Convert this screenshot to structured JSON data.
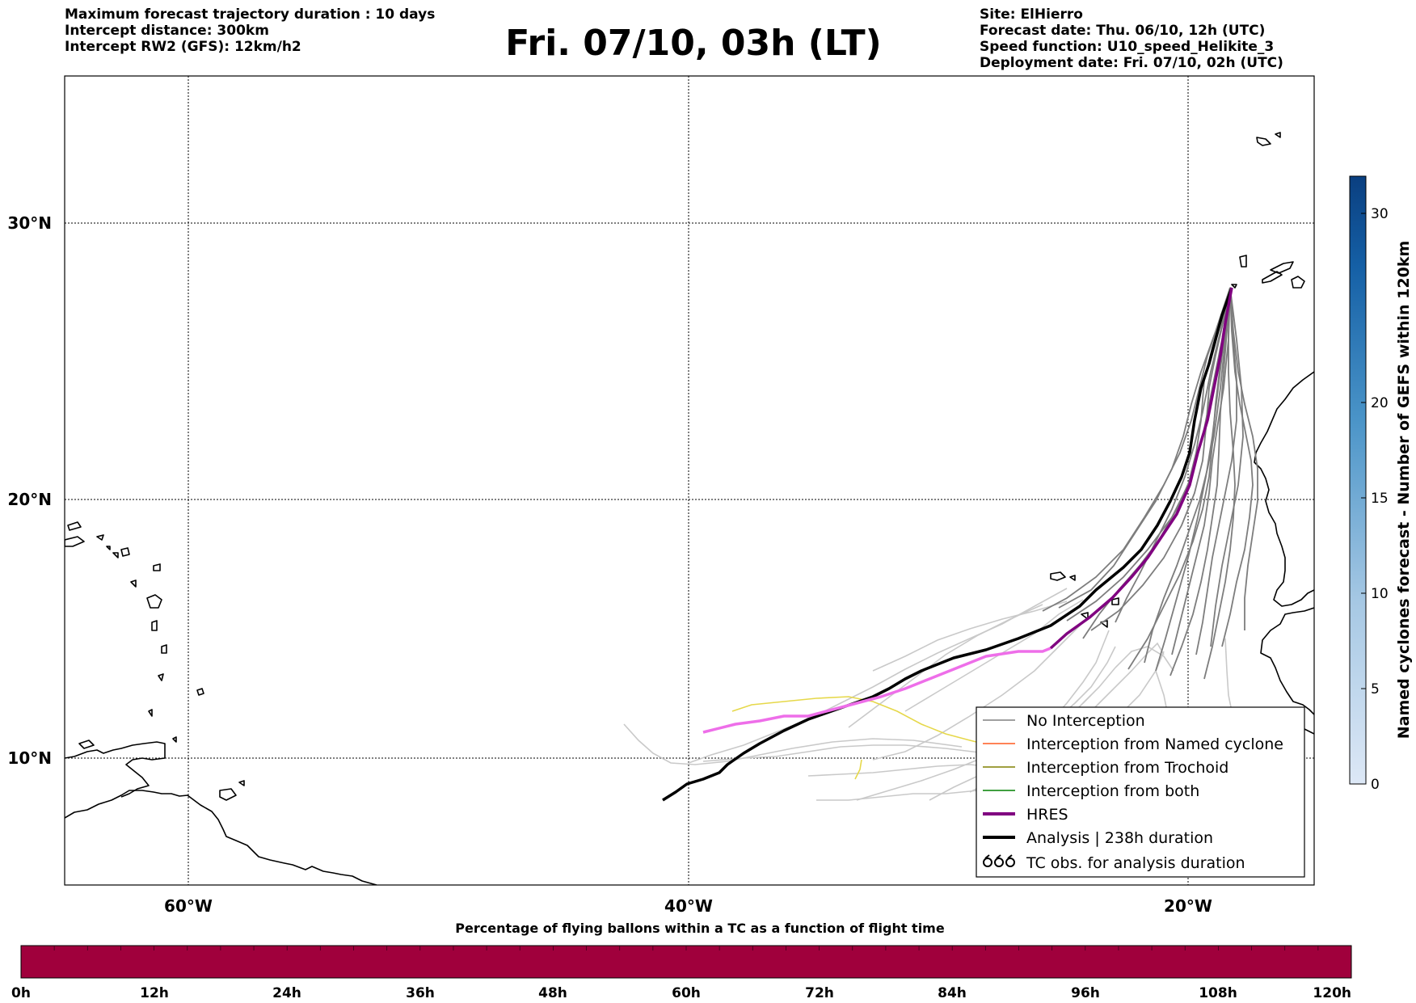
{
  "header": {
    "left_lines": [
      "Maximum forecast trajectory duration : 10 days",
      "Intercept distance: 300km",
      "Intercept RW2 (GFS):  12km/h2"
    ],
    "title": "Fri. 07/10, 03h (LT)",
    "right_lines": [
      "Site: ElHierro",
      "Forecast date: Thu. 06/10, 12h (UTC)",
      "Speed function: U10_speed_Helikite_3",
      "Deployment date: Fri. 07/10, 02h (UTC)"
    ]
  },
  "map": {
    "lon_labels": [
      "60°W",
      "40°W",
      "20°W"
    ],
    "lat_labels": [
      "30°N",
      "20°N",
      "10°N"
    ],
    "colors": {
      "no_interception": "#808080",
      "named_cyclone": "#ff5a1f",
      "trochoid": "#808000",
      "both": "#008000",
      "hres": "#800080",
      "hres_early": "#ee6ee9",
      "analysis": "#000000",
      "yellow_tracks": "#e6d84a"
    }
  },
  "legend": {
    "items": [
      "No Interception",
      "Interception from Named cyclone",
      "Interception from Trochoid",
      "Interception from both",
      "HRES",
      "Analysis | 238h duration",
      "TC obs. for analysis duration"
    ]
  },
  "colorbar_right": {
    "label": "Named cyclones forecast - Number of GEFS within 120km",
    "ticks": [
      "0",
      "5",
      "10",
      "15",
      "20",
      "30"
    ]
  },
  "colorbar_bottom": {
    "title": "Percentage of flying ballons within a TC as a function of flight time",
    "ticks": [
      "0h",
      "12h",
      "24h",
      "36h",
      "48h",
      "60h",
      "72h",
      "84h",
      "96h",
      "108h",
      "120h"
    ],
    "color": "#a0003c"
  }
}
